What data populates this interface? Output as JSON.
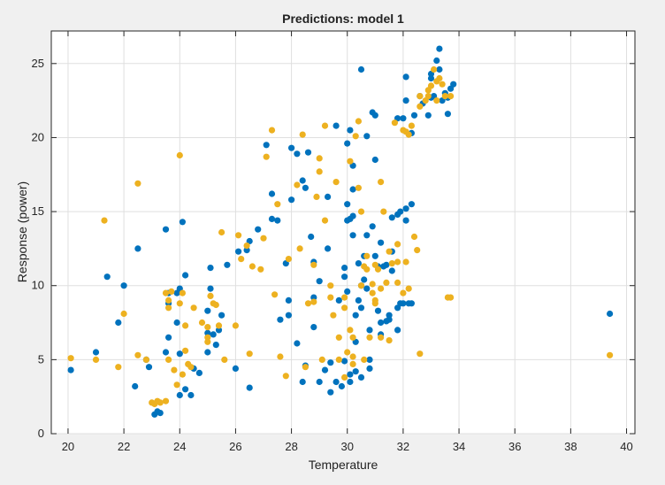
{
  "chart_data": {
    "type": "scatter",
    "title": "Predictions: model 1",
    "xlabel": "Temperature",
    "ylabel": "Response (power)",
    "xlim": [
      19.4,
      40.3
    ],
    "ylim": [
      0,
      27.2
    ],
    "xticks": [
      20,
      22,
      24,
      26,
      28,
      30,
      32,
      34,
      36,
      38,
      40
    ],
    "yticks": [
      0,
      5,
      10,
      15,
      20,
      25
    ],
    "grid": true,
    "legend": "none",
    "series": [
      {
        "color": "#0072bd",
        "points": [
          [
            20.1,
            4.3
          ],
          [
            21.0,
            5.5
          ],
          [
            21.4,
            10.6
          ],
          [
            21.8,
            7.5
          ],
          [
            22.0,
            10.0
          ],
          [
            22.5,
            12.5
          ],
          [
            22.4,
            3.2
          ],
          [
            22.8,
            5.0
          ],
          [
            22.9,
            4.5
          ],
          [
            23.1,
            1.3
          ],
          [
            23.2,
            1.5
          ],
          [
            23.3,
            1.4
          ],
          [
            23.5,
            5.5
          ],
          [
            23.5,
            13.8
          ],
          [
            23.6,
            6.5
          ],
          [
            23.6,
            8.8
          ],
          [
            23.6,
            9.5
          ],
          [
            23.9,
            7.5
          ],
          [
            23.9,
            9.5
          ],
          [
            24.0,
            9.8
          ],
          [
            24.0,
            5.4
          ],
          [
            24.0,
            2.6
          ],
          [
            24.1,
            14.3
          ],
          [
            24.2,
            3.0
          ],
          [
            24.2,
            10.7
          ],
          [
            24.4,
            2.6
          ],
          [
            24.5,
            4.4
          ],
          [
            24.7,
            4.1
          ],
          [
            25.0,
            8.3
          ],
          [
            25.0,
            6.8
          ],
          [
            25.0,
            5.5
          ],
          [
            25.1,
            11.2
          ],
          [
            25.1,
            9.8
          ],
          [
            25.2,
            6.7
          ],
          [
            25.3,
            6.0
          ],
          [
            25.4,
            7.0
          ],
          [
            25.5,
            8.0
          ],
          [
            25.7,
            11.4
          ],
          [
            26.0,
            4.4
          ],
          [
            26.1,
            12.3
          ],
          [
            26.4,
            12.4
          ],
          [
            26.5,
            13.0
          ],
          [
            26.5,
            3.1
          ],
          [
            26.8,
            13.8
          ],
          [
            27.1,
            19.5
          ],
          [
            27.3,
            16.2
          ],
          [
            27.3,
            14.5
          ],
          [
            27.5,
            14.4
          ],
          [
            27.6,
            7.7
          ],
          [
            27.8,
            11.5
          ],
          [
            27.9,
            9.0
          ],
          [
            27.9,
            8.0
          ],
          [
            28.0,
            19.3
          ],
          [
            28.0,
            15.8
          ],
          [
            28.2,
            18.9
          ],
          [
            28.2,
            6.1
          ],
          [
            28.4,
            17.1
          ],
          [
            28.4,
            3.5
          ],
          [
            28.5,
            16.6
          ],
          [
            28.5,
            4.6
          ],
          [
            28.6,
            19.0
          ],
          [
            28.7,
            13.3
          ],
          [
            28.8,
            11.6
          ],
          [
            28.8,
            9.2
          ],
          [
            28.8,
            7.2
          ],
          [
            29.0,
            10.3
          ],
          [
            29.0,
            3.5
          ],
          [
            29.2,
            4.3
          ],
          [
            29.3,
            12.5
          ],
          [
            29.3,
            16.0
          ],
          [
            29.4,
            4.8
          ],
          [
            29.4,
            2.8
          ],
          [
            29.6,
            20.8
          ],
          [
            29.6,
            3.5
          ],
          [
            29.7,
            9.0
          ],
          [
            29.8,
            3.2
          ],
          [
            29.9,
            10.6
          ],
          [
            29.9,
            11.2
          ],
          [
            29.9,
            4.9
          ],
          [
            30.0,
            19.6
          ],
          [
            30.0,
            15.5
          ],
          [
            30.0,
            14.4
          ],
          [
            30.0,
            9.6
          ],
          [
            30.1,
            20.5
          ],
          [
            30.1,
            14.5
          ],
          [
            30.1,
            4.0
          ],
          [
            30.1,
            3.5
          ],
          [
            30.2,
            18.1
          ],
          [
            30.2,
            16.5
          ],
          [
            30.2,
            14.7
          ],
          [
            30.2,
            13.4
          ],
          [
            30.3,
            8.0
          ],
          [
            30.3,
            6.2
          ],
          [
            30.3,
            4.2
          ],
          [
            30.4,
            11.5
          ],
          [
            30.4,
            9.0
          ],
          [
            30.5,
            24.6
          ],
          [
            30.5,
            10.0
          ],
          [
            30.5,
            8.5
          ],
          [
            30.5,
            3.8
          ],
          [
            30.6,
            12.0
          ],
          [
            30.6,
            10.4
          ],
          [
            30.7,
            20.1
          ],
          [
            30.7,
            13.4
          ],
          [
            30.7,
            9.8
          ],
          [
            30.8,
            7.0
          ],
          [
            30.8,
            5.0
          ],
          [
            30.8,
            4.4
          ],
          [
            30.9,
            21.7
          ],
          [
            30.9,
            14.0
          ],
          [
            31.0,
            21.5
          ],
          [
            31.0,
            18.5
          ],
          [
            31.0,
            12.0
          ],
          [
            31.1,
            11.3
          ],
          [
            31.1,
            8.3
          ],
          [
            31.2,
            12.9
          ],
          [
            31.2,
            7.5
          ],
          [
            31.2,
            6.7
          ],
          [
            31.3,
            11.3
          ],
          [
            31.4,
            11.4
          ],
          [
            31.4,
            7.6
          ],
          [
            31.5,
            8.0
          ],
          [
            31.5,
            7.7
          ],
          [
            31.6,
            14.6
          ],
          [
            31.6,
            12.3
          ],
          [
            31.6,
            11.0
          ],
          [
            31.8,
            21.3
          ],
          [
            31.8,
            14.8
          ],
          [
            31.8,
            8.5
          ],
          [
            31.8,
            7.0
          ],
          [
            31.9,
            8.8
          ],
          [
            31.9,
            15.0
          ],
          [
            32.0,
            8.8
          ],
          [
            32.0,
            21.3
          ],
          [
            32.1,
            14.4
          ],
          [
            32.1,
            24.1
          ],
          [
            32.1,
            22.5
          ],
          [
            32.1,
            15.2
          ],
          [
            32.2,
            8.8
          ],
          [
            32.3,
            20.3
          ],
          [
            32.3,
            15.5
          ],
          [
            32.3,
            8.8
          ],
          [
            32.4,
            21.5
          ],
          [
            32.6,
            22.8
          ],
          [
            32.7,
            22.3
          ],
          [
            32.9,
            21.5
          ],
          [
            33.0,
            22.7
          ],
          [
            33.0,
            24.0
          ],
          [
            33.0,
            24.3
          ],
          [
            33.1,
            22.8
          ],
          [
            33.2,
            25.2
          ],
          [
            33.3,
            26.0
          ],
          [
            33.3,
            24.6
          ],
          [
            33.4,
            22.5
          ],
          [
            33.5,
            23.0
          ],
          [
            33.6,
            22.7
          ],
          [
            33.6,
            21.6
          ],
          [
            33.7,
            23.3
          ],
          [
            33.8,
            23.6
          ],
          [
            39.4,
            8.1
          ]
        ]
      },
      {
        "color": "#edb120",
        "points": [
          [
            20.1,
            5.1
          ],
          [
            21.0,
            5.0
          ],
          [
            21.3,
            14.4
          ],
          [
            21.8,
            4.5
          ],
          [
            22.0,
            8.1
          ],
          [
            22.5,
            16.9
          ],
          [
            22.5,
            5.3
          ],
          [
            22.8,
            5.0
          ],
          [
            23.0,
            2.1
          ],
          [
            23.1,
            2.0
          ],
          [
            23.2,
            2.2
          ],
          [
            23.3,
            2.1
          ],
          [
            23.5,
            2.2
          ],
          [
            23.5,
            9.5
          ],
          [
            23.6,
            9.0
          ],
          [
            23.6,
            8.5
          ],
          [
            23.6,
            5.0
          ],
          [
            23.7,
            9.6
          ],
          [
            23.8,
            4.3
          ],
          [
            23.9,
            3.3
          ],
          [
            24.0,
            18.8
          ],
          [
            24.0,
            8.8
          ],
          [
            24.1,
            9.5
          ],
          [
            24.1,
            4.0
          ],
          [
            24.2,
            7.3
          ],
          [
            24.2,
            5.6
          ],
          [
            24.3,
            4.7
          ],
          [
            24.4,
            4.5
          ],
          [
            24.5,
            8.5
          ],
          [
            24.8,
            7.5
          ],
          [
            25.0,
            7.2
          ],
          [
            25.0,
            6.5
          ],
          [
            25.0,
            6.2
          ],
          [
            25.1,
            9.3
          ],
          [
            25.2,
            8.8
          ],
          [
            25.3,
            8.7
          ],
          [
            25.4,
            7.3
          ],
          [
            25.5,
            13.6
          ],
          [
            25.6,
            5.0
          ],
          [
            26.0,
            7.3
          ],
          [
            26.1,
            13.4
          ],
          [
            26.2,
            11.8
          ],
          [
            26.4,
            12.7
          ],
          [
            26.5,
            5.4
          ],
          [
            26.6,
            11.3
          ],
          [
            26.9,
            11.1
          ],
          [
            27.0,
            13.2
          ],
          [
            27.1,
            18.7
          ],
          [
            27.3,
            20.5
          ],
          [
            27.4,
            9.4
          ],
          [
            27.5,
            15.5
          ],
          [
            27.6,
            5.2
          ],
          [
            27.8,
            3.9
          ],
          [
            27.9,
            11.8
          ],
          [
            28.2,
            16.8
          ],
          [
            28.3,
            12.5
          ],
          [
            28.4,
            20.2
          ],
          [
            28.5,
            4.5
          ],
          [
            28.6,
            8.8
          ],
          [
            28.8,
            8.9
          ],
          [
            28.8,
            11.4
          ],
          [
            28.9,
            16.0
          ],
          [
            29.0,
            18.6
          ],
          [
            29.0,
            17.7
          ],
          [
            29.1,
            5.0
          ],
          [
            29.2,
            14.4
          ],
          [
            29.2,
            20.8
          ],
          [
            29.4,
            9.2
          ],
          [
            29.4,
            10.0
          ],
          [
            29.5,
            8.0
          ],
          [
            29.6,
            17.0
          ],
          [
            29.7,
            5.0
          ],
          [
            29.7,
            6.5
          ],
          [
            29.9,
            9.2
          ],
          [
            29.9,
            8.5
          ],
          [
            29.9,
            3.8
          ],
          [
            30.0,
            5.5
          ],
          [
            30.1,
            18.4
          ],
          [
            30.1,
            7.0
          ],
          [
            30.2,
            6.5
          ],
          [
            30.2,
            5.2
          ],
          [
            30.2,
            4.7
          ],
          [
            30.3,
            20.1
          ],
          [
            30.4,
            21.1
          ],
          [
            30.4,
            16.6
          ],
          [
            30.5,
            15.0
          ],
          [
            30.5,
            10.0
          ],
          [
            30.6,
            11.3
          ],
          [
            30.6,
            5.0
          ],
          [
            30.7,
            12.0
          ],
          [
            30.7,
            11.1
          ],
          [
            30.8,
            6.5
          ],
          [
            30.9,
            9.5
          ],
          [
            30.9,
            10.1
          ],
          [
            31.0,
            11.4
          ],
          [
            31.0,
            9.0
          ],
          [
            31.0,
            8.8
          ],
          [
            31.1,
            11.1
          ],
          [
            31.2,
            9.8
          ],
          [
            31.2,
            6.5
          ],
          [
            31.2,
            17.0
          ],
          [
            31.3,
            15.0
          ],
          [
            31.4,
            10.2
          ],
          [
            31.5,
            12.3
          ],
          [
            31.5,
            6.3
          ],
          [
            31.6,
            11.5
          ],
          [
            31.7,
            21.0
          ],
          [
            31.8,
            12.8
          ],
          [
            31.8,
            11.6
          ],
          [
            31.8,
            10.2
          ],
          [
            32.0,
            9.5
          ],
          [
            32.0,
            20.5
          ],
          [
            32.1,
            20.4
          ],
          [
            32.1,
            11.6
          ],
          [
            32.2,
            9.8
          ],
          [
            32.2,
            20.2
          ],
          [
            32.3,
            20.8
          ],
          [
            32.4,
            13.3
          ],
          [
            32.5,
            12.4
          ],
          [
            32.6,
            22.8
          ],
          [
            32.6,
            22.1
          ],
          [
            32.8,
            22.5
          ],
          [
            32.9,
            22.8
          ],
          [
            32.9,
            23.2
          ],
          [
            33.0,
            23.5
          ],
          [
            33.1,
            24.6
          ],
          [
            33.2,
            23.8
          ],
          [
            33.2,
            22.5
          ],
          [
            33.3,
            24.0
          ],
          [
            33.4,
            23.6
          ],
          [
            33.5,
            22.8
          ],
          [
            33.6,
            9.2
          ],
          [
            33.7,
            9.2
          ],
          [
            33.7,
            22.8
          ],
          [
            32.6,
            5.4
          ],
          [
            39.4,
            5.3
          ]
        ]
      }
    ]
  }
}
